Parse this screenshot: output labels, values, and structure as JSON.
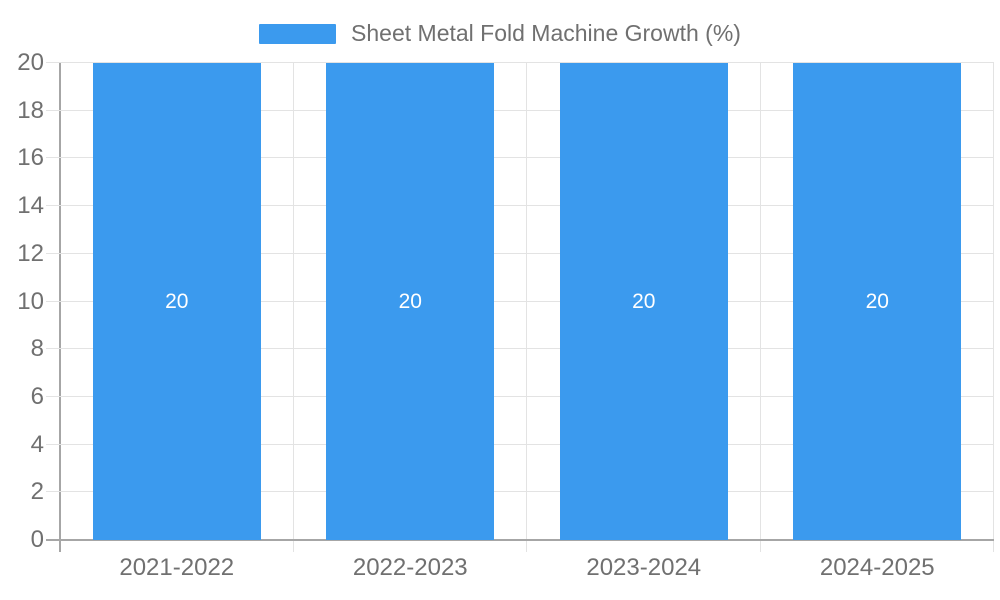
{
  "legend": {
    "label": "Sheet Metal Fold Machine Growth (%)"
  },
  "chart_data": {
    "type": "bar",
    "title": "Sheet Metal Fold Machine Growth (%)",
    "categories": [
      "2021-2022",
      "2022-2023",
      "2023-2024",
      "2024-2025"
    ],
    "values": [
      20,
      20,
      20,
      20
    ],
    "bar_labels": [
      "20",
      "20",
      "20",
      "20"
    ],
    "xlabel": "",
    "ylabel": "",
    "ylim": [
      0,
      20
    ],
    "yticks": [
      0,
      2,
      4,
      6,
      8,
      10,
      12,
      14,
      16,
      18,
      20
    ],
    "grid": true,
    "legend_position": "top"
  },
  "colors": {
    "bar": "#3B9AEE",
    "bar_label": "#FFFFFF",
    "grid_light": "#E3E3E3",
    "axis": "#A6A6A6",
    "text": "#707070",
    "background": "#FFFFFF"
  }
}
